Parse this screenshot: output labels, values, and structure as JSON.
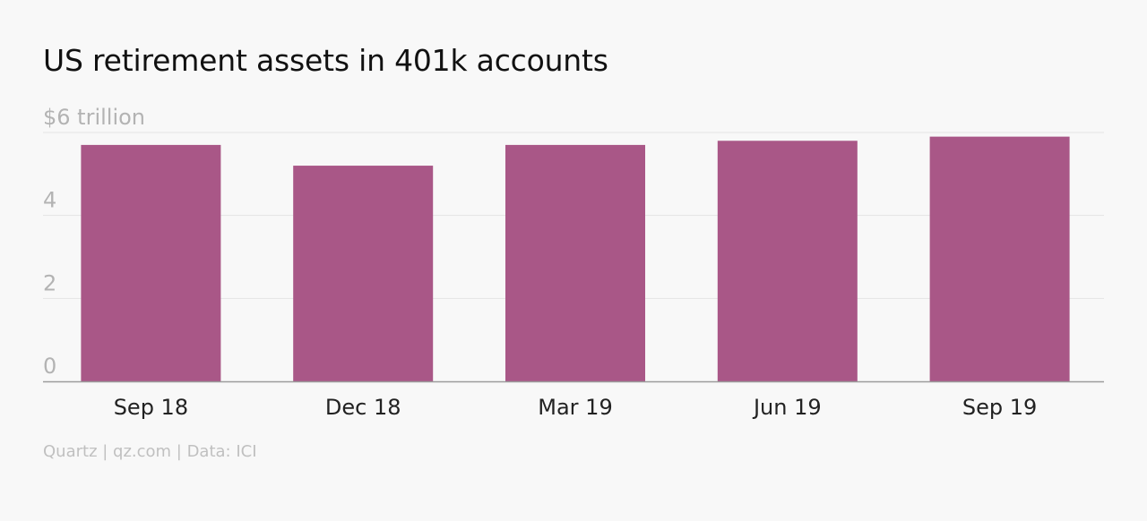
{
  "title": "US retirement assets in 401k accounts",
  "footer": "Quartz | qz.com | Data: ICI",
  "colors": {
    "bar": "#a95787",
    "grid": "#e4e4e4",
    "axis": "#9c9c9c",
    "tick_label": "#b3b3b3",
    "category_label": "#222222"
  },
  "chart_data": {
    "type": "bar",
    "title": "US retirement assets in 401k accounts",
    "categories": [
      "Sep 18",
      "Dec 18",
      "Mar 19",
      "Jun 19",
      "Sep 19"
    ],
    "values": [
      5.7,
      5.2,
      5.7,
      5.8,
      5.9
    ],
    "ylim": [
      0,
      6
    ],
    "yticks": [
      0,
      2,
      4,
      6
    ],
    "ytick_labels": [
      "0",
      "2",
      "4",
      "$6 trillion"
    ],
    "xlabel": "",
    "ylabel": "",
    "grid": true
  }
}
